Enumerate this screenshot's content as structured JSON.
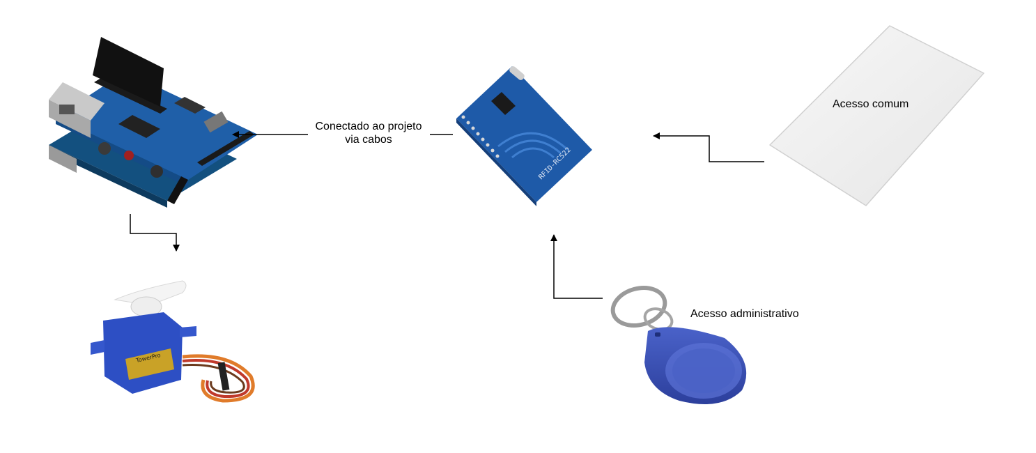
{
  "labels": {
    "connection_line1": "Conectado ao projeto",
    "connection_line2": "via cabos",
    "card": "Acesso comum",
    "keyfob": "Acesso administrativo"
  },
  "components": {
    "arduino": {
      "icon": "arduino-ethernet-board-icon"
    },
    "rfid_reader": {
      "icon": "rfid-reader-module-icon",
      "silkscreen": "RFID-RC522"
    },
    "card": {
      "icon": "rfid-card-icon"
    },
    "keyfob": {
      "icon": "rfid-keyfob-icon"
    },
    "servo": {
      "icon": "servo-motor-icon",
      "brand": "TowerPro"
    }
  },
  "colors": {
    "arrow": "#000000",
    "pcb_blue": "#1f5fa8",
    "card_white": "#f2f2f2",
    "keyfob_blue": "#3b52b8",
    "servo_blue": "#2d4fc4"
  }
}
